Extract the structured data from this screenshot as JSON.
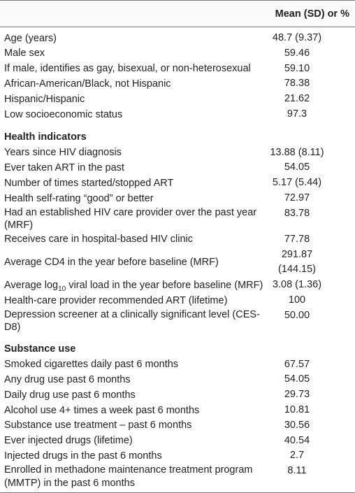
{
  "header": {
    "column": "Mean (SD) or %"
  },
  "sections": [
    {
      "rows": [
        {
          "label": "Age (years)",
          "value": "48.7 (9.37)"
        },
        {
          "label": "Male sex",
          "value": "59.46"
        },
        {
          "label": "If male, identifies as gay, bisexual, or non-heterosexual",
          "value": "59.10"
        },
        {
          "label": "African-American/Black, not Hispanic",
          "value": "78.38"
        },
        {
          "label": "Hispanic/Hispanic",
          "value": "21.62"
        },
        {
          "label": "Low socioeconomic status",
          "value": "97.3"
        }
      ]
    },
    {
      "title": "Health indicators",
      "rows": [
        {
          "label": "Years since HIV diagnosis",
          "value": "13.88 (8.11)"
        },
        {
          "label": "Ever taken ART in the past",
          "value": "54.05"
        },
        {
          "label": "Number of times started/stopped ART",
          "value": "5.17 (5.44)"
        },
        {
          "label": "Health self-rating “good” or better",
          "value": "72.97"
        },
        {
          "label": "Had an established HIV care provider over the past year (MRF)",
          "value": "83.78"
        },
        {
          "label": "Receives care in hospital-based HIV clinic",
          "value": "77.78"
        },
        {
          "label": "Average CD4 in the year before baseline (MRF)",
          "value": "291.87 (144.15)"
        },
        {
          "label_parts": [
            "Average log",
            "10",
            " viral load in the year before baseline (MRF)"
          ],
          "value": "3.08 (1.36)"
        },
        {
          "label": "Health-care provider recommended ART (lifetime)",
          "value": "100"
        },
        {
          "label": "Depression screener at a clinically significant level (CES-D8)",
          "value": "50.00"
        }
      ]
    },
    {
      "title": "Substance use",
      "rows": [
        {
          "label": "Smoked cigarettes daily past 6 months",
          "value": "67.57"
        },
        {
          "label": "Any drug use past 6 months",
          "value": "54.05"
        },
        {
          "label": "Daily drug use past 6 months",
          "value": "29.73"
        },
        {
          "label": "Alcohol use 4+ times a week past 6 months",
          "value": "10.81"
        },
        {
          "label": "Substance use treatment – past 6 months",
          "value": "30.56"
        },
        {
          "label": "Ever injected drugs (lifetime)",
          "value": "40.54"
        },
        {
          "label": "Injected drugs in the past 6 months",
          "value": "2.7"
        },
        {
          "label": "Enrolled in methadone maintenance treatment program (MMTP) in the past 6 months",
          "value": "8.11"
        }
      ]
    }
  ]
}
